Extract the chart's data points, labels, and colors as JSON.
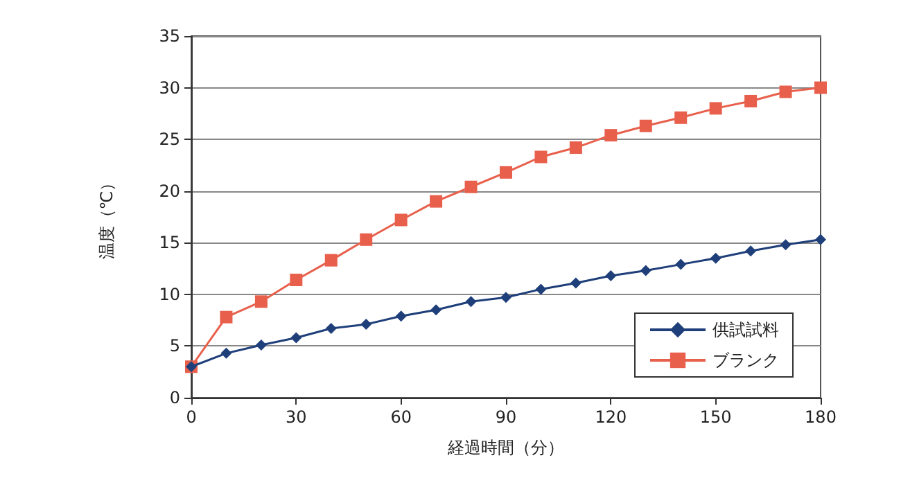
{
  "chart_data": {
    "type": "line",
    "xlabel": "経過時間（分）",
    "ylabel": "温度（℃）",
    "x": [
      0,
      10,
      20,
      30,
      40,
      50,
      60,
      70,
      80,
      90,
      100,
      110,
      120,
      130,
      140,
      150,
      160,
      170,
      180
    ],
    "series": [
      {
        "name": "供試試料",
        "color": "#1f3f7a",
        "marker": "diamond",
        "values": [
          3.0,
          4.3,
          5.1,
          5.8,
          6.7,
          7.1,
          7.9,
          8.5,
          9.3,
          9.7,
          10.5,
          11.1,
          11.8,
          12.3,
          12.9,
          13.5,
          14.2,
          14.8,
          15.3
        ]
      },
      {
        "name": "ブランク",
        "color": "#e8604c",
        "marker": "square",
        "values": [
          3.0,
          7.8,
          9.3,
          11.4,
          13.3,
          15.3,
          17.2,
          19.0,
          20.4,
          21.8,
          23.3,
          24.2,
          25.4,
          26.3,
          27.1,
          28.0,
          28.7,
          29.6,
          30.0
        ]
      }
    ],
    "xlim": [
      0,
      180
    ],
    "xticks": [
      0,
      30,
      60,
      90,
      120,
      150,
      180
    ],
    "ylim": [
      0,
      35
    ],
    "yticks": [
      0,
      5,
      10,
      15,
      20,
      25,
      30,
      35
    ],
    "grid": "y",
    "legend": "bottom right"
  }
}
